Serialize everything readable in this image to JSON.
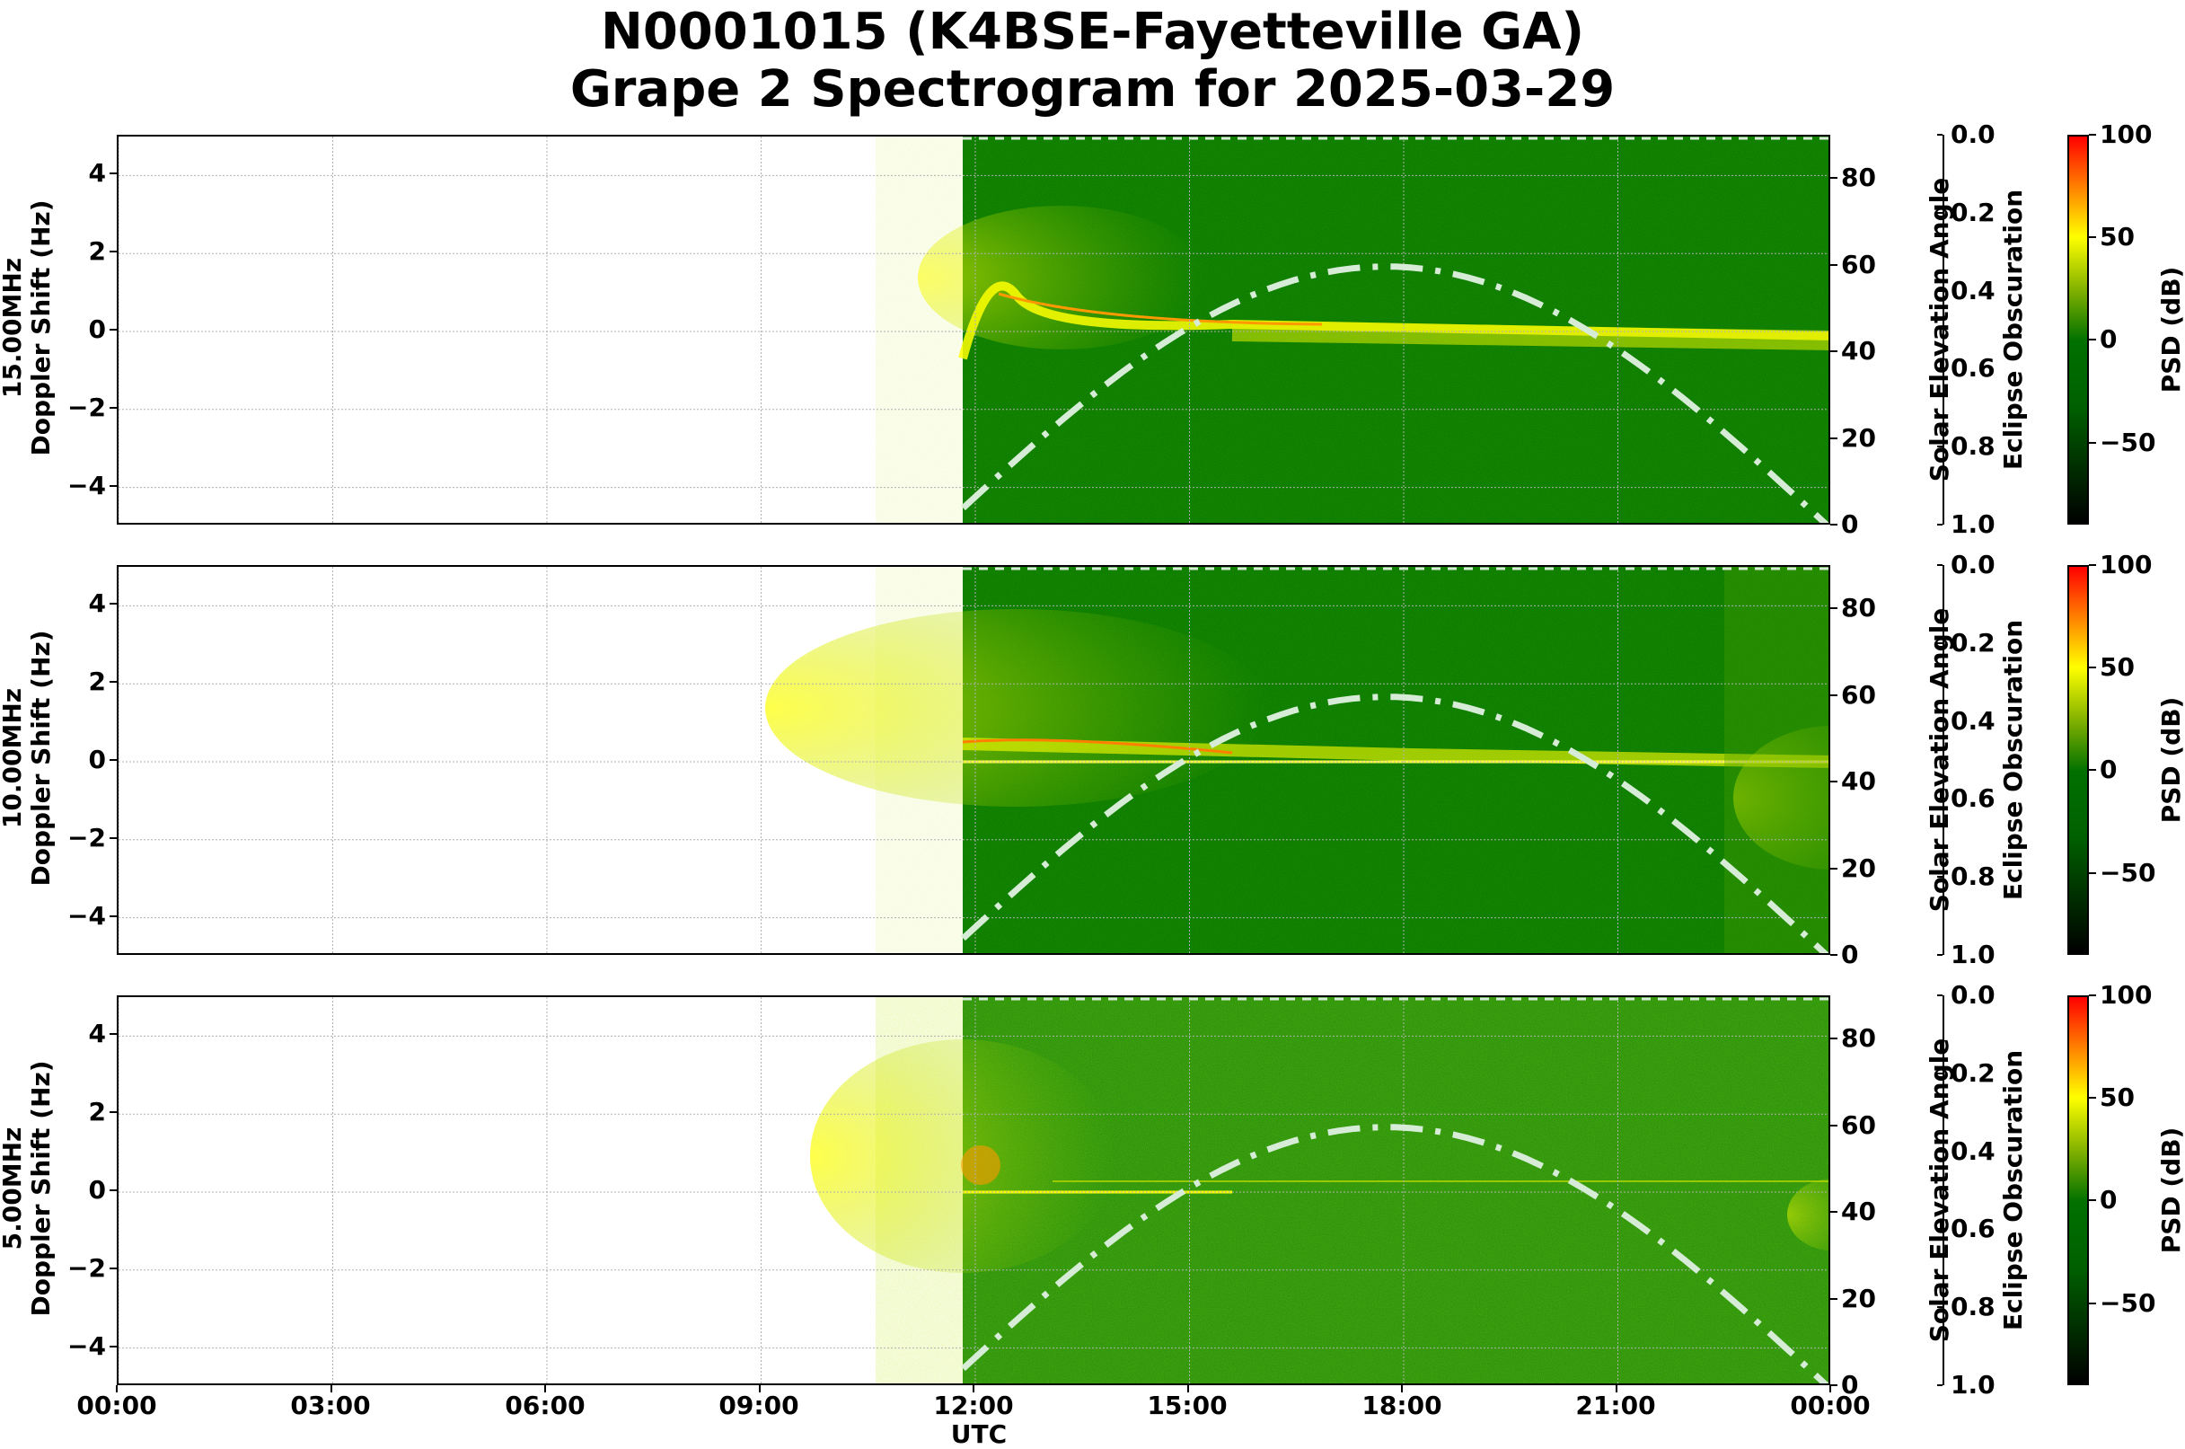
{
  "title": {
    "line1": "N0001015 (K4BSE-Fayetteville GA)",
    "line2": "Grape 2 Spectrogram for 2025-03-29"
  },
  "xaxis": {
    "label": "UTC",
    "ticks": [
      "00:00",
      "03:00",
      "06:00",
      "09:00",
      "12:00",
      "15:00",
      "18:00",
      "21:00",
      "00:00"
    ]
  },
  "panels": [
    {
      "freq": "15.00MHz",
      "ylabel": "Doppler Shift (Hz)"
    },
    {
      "freq": "10.00MHz",
      "ylabel": "Doppler Shift (Hz)"
    },
    {
      "freq": "5.00MHz",
      "ylabel": "Doppler Shift (Hz)"
    }
  ],
  "yaxis": {
    "ticks": [
      "4",
      "2",
      "0",
      "−2",
      "−4"
    ]
  },
  "solar_axis": {
    "label": "Solar Elevation Angle",
    "ticks": [
      "80",
      "60",
      "40",
      "20",
      "0"
    ]
  },
  "eclipse_axis": {
    "label": "Eclipse Obscuration",
    "ticks": [
      "0.0",
      "0.2",
      "0.4",
      "0.6",
      "0.8",
      "1.0"
    ]
  },
  "colorbar": {
    "label": "PSD (dB)",
    "ticks": [
      "100",
      "50",
      "0",
      "−50"
    ]
  },
  "colors": {
    "background_green": "#007a00",
    "signal_yellow": "#ffff00",
    "peak_red": "#ff0000",
    "solar_curve": "#d6ecd6"
  },
  "chart_data": {
    "type": "heatmap",
    "title": "N0001015 (K4BSE-Fayetteville GA) Grape 2 Spectrogram for 2025-03-29",
    "xlabel": "UTC",
    "x_range": [
      "2025-03-29 00:00",
      "2025-03-30 00:00"
    ],
    "data_start_utc": "11:50",
    "subplots": [
      {
        "frequency": "15.00MHz",
        "ylabel": "Doppler Shift (Hz)",
        "ylim": [
          -5,
          5
        ],
        "description": "Strong Doppler trace near 0 Hz from ~12:00 to 00:00; morning spreading up to ~+2 Hz around 12:00-13:30; trace slightly negative (~-0.3 Hz) late in day"
      },
      {
        "frequency": "10.00MHz",
        "ylabel": "Doppler Shift (Hz)",
        "ylim": [
          -5,
          5
        ],
        "description": "Broad spreading +0.5 to +2 Hz from 12:00-14:00, carrier line at 0 Hz through day, diffuse signal -1 to -2 Hz after 23:00"
      },
      {
        "frequency": "5.00MHz",
        "ylabel": "Doppler Shift (Hz)",
        "ylim": [
          -5,
          5
        ],
        "description": "Strong signal +0.5 to +1 Hz from 12:00-13:00 decaying; weak carrier at 0 Hz; faint patch near -1 Hz after 23:30"
      }
    ],
    "solar_elevation": {
      "ylabel": "Solar Elevation Angle",
      "ylim": [
        0,
        90
      ],
      "x": [
        "11:50",
        "13:00",
        "14:00",
        "15:00",
        "16:00",
        "17:00",
        "17:45",
        "19:00",
        "20:00",
        "21:00",
        "22:00",
        "23:00",
        "23:55"
      ],
      "values": [
        3,
        18,
        32,
        44,
        53,
        58.5,
        60,
        57,
        49,
        38,
        25,
        12,
        0
      ]
    },
    "eclipse_obscuration": {
      "ylabel": "Eclipse Obscuration",
      "ylim": [
        1.0,
        0.0
      ],
      "value": 0.0
    },
    "colorbar": {
      "label": "PSD (dB)",
      "range": [
        -90,
        100
      ],
      "ticks": [
        100,
        50,
        0,
        -50
      ]
    },
    "grid": true
  }
}
